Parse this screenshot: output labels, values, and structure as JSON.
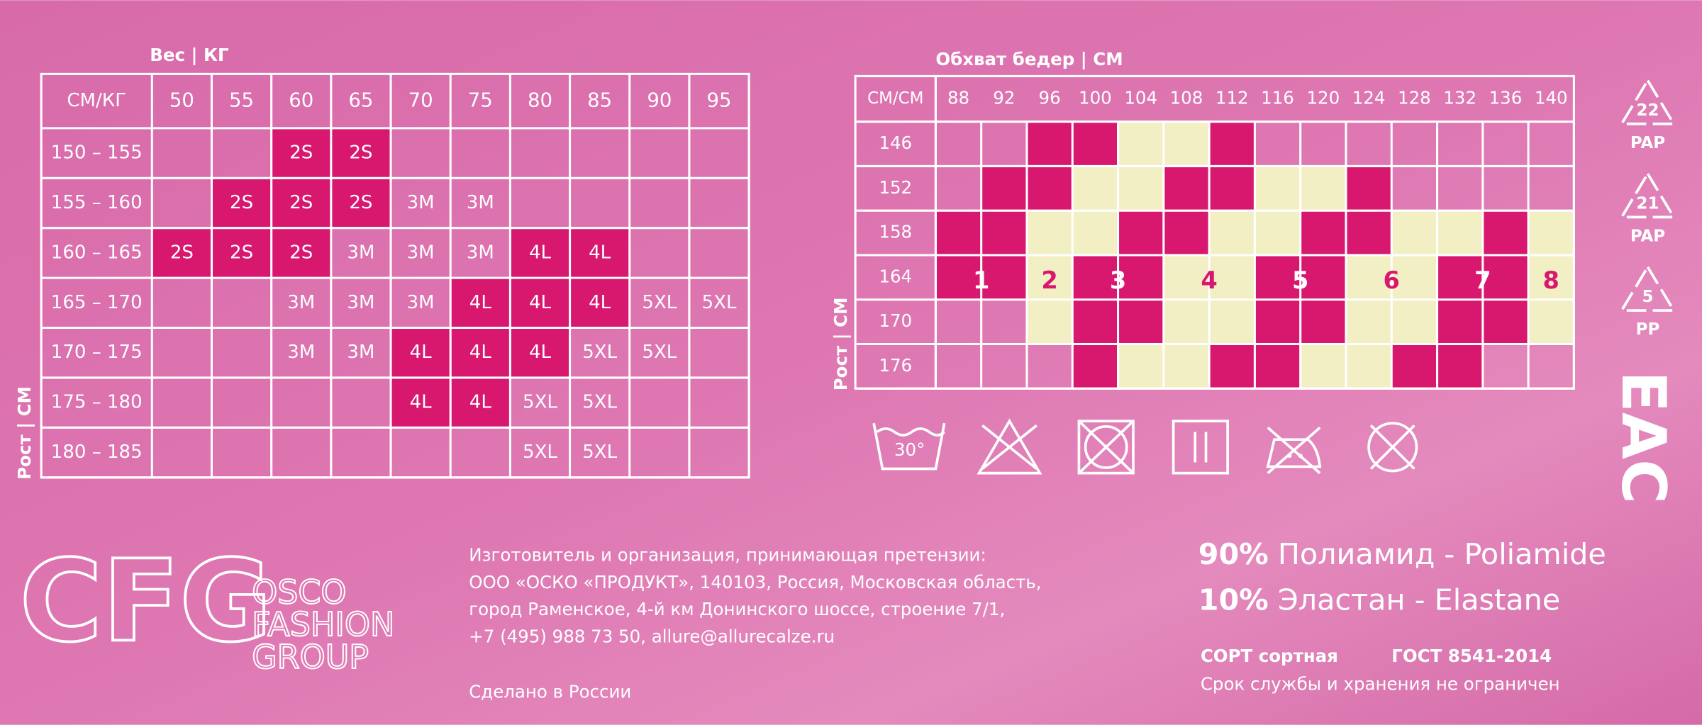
{
  "weight_table": {
    "title": "Вес | КГ",
    "axis_label": "Рост | СМ",
    "corner": "СМ/КГ",
    "columns": [
      "50",
      "55",
      "60",
      "65",
      "70",
      "75",
      "80",
      "85",
      "90",
      "95"
    ],
    "rows": [
      {
        "label": "150 – 155",
        "cells": [
          null,
          null,
          "2S",
          "2S",
          null,
          null,
          null,
          null,
          null,
          null
        ]
      },
      {
        "label": "155 – 160",
        "cells": [
          null,
          "2S",
          "2S",
          "2S",
          "3M",
          "3M",
          null,
          null,
          null,
          null
        ]
      },
      {
        "label": "160 – 165",
        "cells": [
          "2S",
          "2S",
          "2S",
          "3M",
          "3M",
          "3M",
          "4L",
          "4L",
          null,
          null
        ]
      },
      {
        "label": "165 – 170",
        "cells": [
          null,
          null,
          "3M",
          "3M",
          "3M",
          "4L",
          "4L",
          "4L",
          "5XL",
          "5XL"
        ]
      },
      {
        "label": "170 – 175",
        "cells": [
          null,
          null,
          "3M",
          "3M",
          "4L",
          "4L",
          "4L",
          "5XL",
          "5XL",
          null
        ]
      },
      {
        "label": "175 – 180",
        "cells": [
          null,
          null,
          null,
          null,
          "4L",
          "4L",
          "5XL",
          "5XL",
          null,
          null
        ]
      },
      {
        "label": "180 – 185",
        "cells": [
          null,
          null,
          null,
          null,
          null,
          null,
          "5XL",
          "5XL",
          null,
          null
        ]
      }
    ],
    "highlighted_sizes": [
      "2S",
      "4L"
    ],
    "highlight_color": "#d8176f"
  },
  "hip_table": {
    "title": "Обхват бедер | СМ",
    "axis_label": "Рост | СМ",
    "corner": "СМ/СМ",
    "columns": [
      "88",
      "92",
      "96",
      "100",
      "104",
      "108",
      "112",
      "116",
      "120",
      "124",
      "128",
      "132",
      "136",
      "140"
    ],
    "rows": [
      "146",
      "152",
      "158",
      "164",
      "170",
      "176"
    ],
    "zones": [
      [
        0,
        0,
        1,
        1,
        2,
        2,
        3,
        0,
        0,
        0,
        0,
        0,
        0,
        0
      ],
      [
        0,
        1,
        1,
        2,
        2,
        3,
        3,
        4,
        4,
        5,
        0,
        0,
        0,
        0
      ],
      [
        1,
        1,
        2,
        2,
        3,
        3,
        4,
        4,
        5,
        5,
        6,
        6,
        7,
        8
      ],
      [
        1,
        1,
        2,
        3,
        3,
        4,
        4,
        5,
        5,
        6,
        6,
        7,
        7,
        8
      ],
      [
        0,
        0,
        2,
        3,
        3,
        4,
        4,
        5,
        5,
        6,
        6,
        7,
        7,
        8
      ],
      [
        0,
        0,
        0,
        3,
        4,
        4,
        5,
        5,
        6,
        6,
        7,
        7,
        0,
        0
      ]
    ],
    "size_labels": [
      "1",
      "2",
      "3",
      "4",
      "5",
      "6",
      "7",
      "8"
    ],
    "label_row": 3,
    "odd_color": "#d8176f",
    "even_color": "#f3efc4",
    "label_color": "#d8176f"
  },
  "recycling": [
    {
      "code": "22",
      "label": "PAP"
    },
    {
      "code": "21",
      "label": "PAP"
    },
    {
      "code": "5",
      "label": "PP"
    }
  ],
  "eac": "ЕАС",
  "care": {
    "wash_temp": "30°"
  },
  "logo": "CFG",
  "brand": [
    "OSCO",
    "FASHION",
    "GROUP"
  ],
  "manufacturer": [
    "Изготовитель и организация, принимающая претензии:",
    "ООО «ОСКО «ПРОДУКТ», 140103, Россия, Московская область,",
    "город Раменское, 4-й км Донинского шоссе, строение 7/1,",
    "+7 (495) 988 73 50, allure@allurecalze.ru"
  ],
  "made_in": "Сделано в России",
  "composition": [
    {
      "percent": "90%",
      "text": "Полиамид - Poliamide"
    },
    {
      "percent": "10%",
      "text": "Эластан - Elastane"
    }
  ],
  "grade": "СОРТ сортная",
  "gost": "ГОСТ 8541-2014",
  "shelf_life": "Срок службы и хранения не ограничен"
}
